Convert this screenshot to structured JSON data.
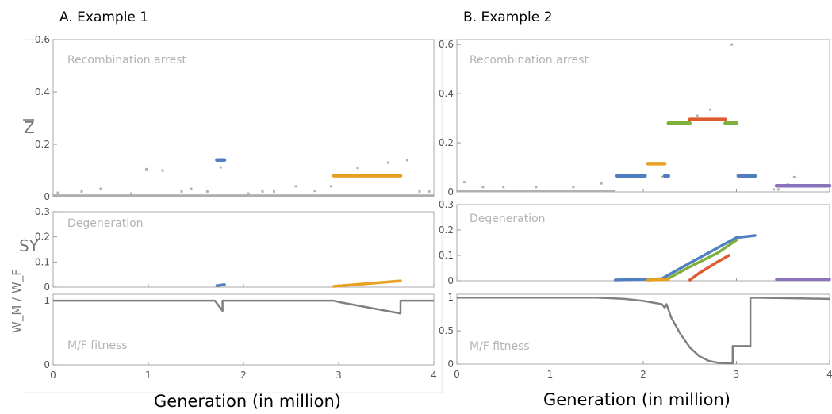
{
  "figure": {
    "xlabel": "Generation (in million)",
    "x_ticks": [
      "0",
      "1",
      "2",
      "3",
      "4"
    ],
    "y_labels": {
      "z": "Z",
      "sy": "SY",
      "fitness": "W_M / W_F"
    },
    "colors": {
      "gray": "#b0b0b0",
      "blue": "#4f7fc0",
      "orange": "#e8a020",
      "green": "#7fb03c",
      "red": "#e05a30",
      "purple": "#8a72bc",
      "fitness_line": "#808080",
      "axis": "#aaaaaa"
    }
  },
  "panels": [
    {
      "title": "A. Example 1",
      "subplots": [
        {
          "note": "Recombination arrest",
          "yticks": [
            "0",
            "0.2",
            "0.4",
            "0.6"
          ]
        },
        {
          "note": "Degeneration",
          "yticks": [
            "0",
            "0.1",
            "0.2",
            "0.3"
          ]
        },
        {
          "note": "M/F fitness",
          "yticks": [
            "0",
            "1"
          ]
        }
      ]
    },
    {
      "title": "B. Example 2",
      "subplots": [
        {
          "note": "Recombination arrest",
          "yticks": [
            "0",
            "0.2",
            "0.4",
            "0.6"
          ]
        },
        {
          "note": "Degeneration",
          "yticks": [
            "0",
            "0.1",
            "0.2",
            "0.3"
          ]
        },
        {
          "note": "M/F fitness",
          "yticks": [
            "0",
            "0.5",
            "1"
          ]
        }
      ]
    }
  ],
  "chart_data": [
    {
      "type": "scatter",
      "panel": "A. Example 1",
      "variable": "Z",
      "xlabel": "Generation (in million)",
      "xlim": [
        0,
        4
      ],
      "ylim": [
        0,
        0.6
      ],
      "series": [
        {
          "color": "gray",
          "baseline": {
            "x": [
              0,
              4
            ],
            "y": 0.005
          },
          "points": [
            [
              0.05,
              0.015
            ],
            [
              0.3,
              0.02
            ],
            [
              0.5,
              0.03
            ],
            [
              0.82,
              0.012
            ],
            [
              0.98,
              0.105
            ],
            [
              1.15,
              0.1
            ],
            [
              1.35,
              0.02
            ],
            [
              1.45,
              0.03
            ],
            [
              1.62,
              0.02
            ],
            [
              2.05,
              0.012
            ],
            [
              2.2,
              0.02
            ],
            [
              2.32,
              0.02
            ],
            [
              2.55,
              0.04
            ],
            [
              2.75,
              0.022
            ],
            [
              2.92,
              0.04
            ],
            [
              3.2,
              0.11
            ],
            [
              3.52,
              0.13
            ],
            [
              3.72,
              0.14
            ],
            [
              3.85,
              0.02
            ],
            [
              3.95,
              0.02
            ],
            [
              1.76,
              0.112
            ]
          ]
        },
        {
          "color": "blue",
          "segments": [
            {
              "x": [
                1.72,
                1.8
              ],
              "y": 0.14
            }
          ]
        },
        {
          "color": "orange",
          "segments": [
            {
              "x": [
                2.95,
                3.65
              ],
              "y": 0.08
            }
          ]
        }
      ]
    },
    {
      "type": "scatter",
      "panel": "A. Example 1",
      "variable": "SY",
      "xlim": [
        0,
        4
      ],
      "ylim": [
        0,
        0.3
      ],
      "series": [
        {
          "color": "blue",
          "lines": [
            {
              "x": [
                1.72,
                1.8
              ],
              "y": [
                0.006,
                0.01
              ]
            }
          ]
        },
        {
          "color": "orange",
          "lines": [
            {
              "x": [
                2.95,
                3.65
              ],
              "y": [
                0.003,
                0.025
              ]
            }
          ]
        }
      ]
    },
    {
      "type": "line",
      "panel": "A. Example 1",
      "variable": "W_M / W_F",
      "xlim": [
        0,
        4
      ],
      "ylim": [
        0,
        1.1
      ],
      "series": [
        {
          "color": "fitness_line",
          "x": [
            0,
            1.7,
            1.78,
            1.78,
            2.95,
            3.0,
            3.65,
            3.65,
            4.0
          ],
          "y": [
            1.0,
            1.0,
            0.84,
            1.0,
            1.0,
            0.98,
            0.8,
            1.0,
            1.0
          ]
        }
      ]
    },
    {
      "type": "scatter",
      "panel": "B. Example 2",
      "variable": "Z",
      "xlabel": "Generation (in million)",
      "xlim": [
        0,
        4
      ],
      "ylim": [
        0,
        0.62
      ],
      "series": [
        {
          "color": "gray",
          "baseline": {
            "x": [
              0,
              1.7
            ],
            "y": 0.003
          },
          "points": [
            [
              0.08,
              0.04
            ],
            [
              0.28,
              0.02
            ],
            [
              0.5,
              0.02
            ],
            [
              0.85,
              0.02
            ],
            [
              1.25,
              0.02
            ],
            [
              1.55,
              0.035
            ],
            [
              2.3,
              0.28
            ],
            [
              2.72,
              0.335
            ],
            [
              2.58,
              0.31
            ],
            [
              2.95,
              0.6
            ],
            [
              2.2,
              0.06
            ],
            [
              3.4,
              0.01
            ],
            [
              3.55,
              0.03
            ],
            [
              3.62,
              0.06
            ],
            [
              3.45,
              0.01
            ]
          ]
        },
        {
          "color": "blue",
          "segments": [
            {
              "x": [
                1.72,
                2.02
              ],
              "y": 0.065
            },
            {
              "x": [
                2.23,
                2.27
              ],
              "y": 0.065
            },
            {
              "x": [
                3.02,
                3.2
              ],
              "y": 0.065
            }
          ]
        },
        {
          "color": "orange",
          "segments": [
            {
              "x": [
                2.05,
                2.23
              ],
              "y": 0.115
            }
          ]
        },
        {
          "color": "green",
          "segments": [
            {
              "x": [
                2.27,
                2.5
              ],
              "y": 0.28
            },
            {
              "x": [
                2.88,
                3.0
              ],
              "y": 0.28
            }
          ]
        },
        {
          "color": "red",
          "segments": [
            {
              "x": [
                2.5,
                2.88
              ],
              "y": 0.295
            }
          ]
        },
        {
          "color": "purple",
          "segments": [
            {
              "x": [
                3.43,
                4.0
              ],
              "y": 0.025
            }
          ]
        }
      ]
    },
    {
      "type": "scatter",
      "panel": "B. Example 2",
      "variable": "SY",
      "xlim": [
        0,
        4
      ],
      "ylim": [
        0,
        0.3
      ],
      "series": [
        {
          "color": "blue",
          "lines": [
            {
              "x": [
                1.7,
                2.2,
                2.5,
                2.8,
                3.0,
                3.2
              ],
              "y": [
                0.003,
                0.008,
                0.07,
                0.13,
                0.17,
                0.178
              ]
            }
          ]
        },
        {
          "color": "green",
          "lines": [
            {
              "x": [
                2.05,
                2.25,
                2.5,
                2.8,
                3.0
              ],
              "y": [
                0.003,
                0.005,
                0.055,
                0.11,
                0.16
              ]
            }
          ]
        },
        {
          "color": "orange",
          "lines": [
            {
              "x": [
                2.05,
                2.27
              ],
              "y": [
                0.003,
                0.005
              ]
            }
          ]
        },
        {
          "color": "red",
          "lines": [
            {
              "x": [
                2.5,
                2.6,
                2.8,
                2.92
              ],
              "y": [
                0.003,
                0.03,
                0.075,
                0.1
              ]
            }
          ]
        },
        {
          "color": "purple",
          "lines": [
            {
              "x": [
                3.43,
                4.0
              ],
              "y": [
                0.005,
                0.005
              ]
            }
          ]
        }
      ]
    },
    {
      "type": "line",
      "panel": "B. Example 2",
      "variable": "W_M / W_F",
      "xlim": [
        0,
        4
      ],
      "ylim": [
        0,
        1.05
      ],
      "series": [
        {
          "color": "fitness_line",
          "x": [
            0,
            1.5,
            1.8,
            2.0,
            2.2,
            2.23,
            2.25,
            2.3,
            2.4,
            2.5,
            2.6,
            2.7,
            2.8,
            2.9,
            2.96,
            2.96,
            3.15,
            3.15,
            4.0
          ],
          "y": [
            1.0,
            1.0,
            0.98,
            0.95,
            0.9,
            0.85,
            0.9,
            0.7,
            0.45,
            0.25,
            0.12,
            0.05,
            0.02,
            0.01,
            0.01,
            0.27,
            0.27,
            1.0,
            0.98
          ]
        }
      ]
    }
  ]
}
